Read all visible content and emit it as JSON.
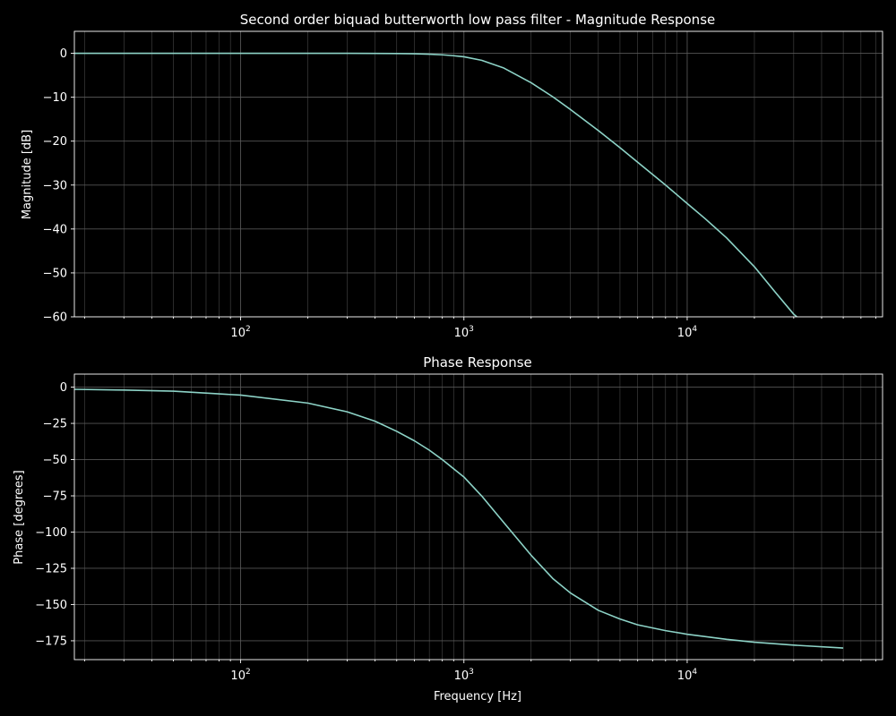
{
  "style": {
    "background": "#000000",
    "line_color": "#8dd3c7",
    "grid_color": "#5a5a5a",
    "text_color": "#ffffff"
  },
  "chart_data": [
    {
      "type": "line",
      "id": "magnitude",
      "title": "Second order biquad butterworth low pass filter - Magnitude Response",
      "xlabel": "",
      "ylabel": "Magnitude [dB]",
      "xscale": "log",
      "xlim": [
        18,
        75000
      ],
      "ylim": [
        -60,
        5
      ],
      "grid": true,
      "yticks": [
        {
          "value": 0,
          "label": "0"
        },
        {
          "value": -10,
          "label": "−10"
        },
        {
          "value": -20,
          "label": "−20"
        },
        {
          "value": -30,
          "label": "−30"
        },
        {
          "value": -40,
          "label": "−40"
        },
        {
          "value": -50,
          "label": "−50"
        },
        {
          "value": -60,
          "label": "−60"
        }
      ],
      "xticks": [
        {
          "value": 100,
          "base": "10",
          "exp": "2"
        },
        {
          "value": 1000,
          "base": "10",
          "exp": "3"
        },
        {
          "value": 10000,
          "base": "10",
          "exp": "4"
        }
      ],
      "series": [
        {
          "x": [
            18,
            50,
            100,
            200,
            300,
            400,
            500,
            600,
            700,
            800,
            900,
            1000,
            1200,
            1500,
            2000,
            2500,
            3000,
            4000,
            5000,
            6000,
            8000,
            10000,
            12000,
            15000,
            20000,
            25000,
            30000,
            31000
          ],
          "y": [
            0,
            0,
            0,
            0,
            -0.01,
            -0.02,
            -0.05,
            -0.1,
            -0.2,
            -0.35,
            -0.55,
            -0.8,
            -1.6,
            -3.3,
            -6.7,
            -9.9,
            -12.8,
            -17.6,
            -21.5,
            -24.8,
            -30.0,
            -34.2,
            -37.6,
            -42.0,
            -48.6,
            -54.6,
            -59.4,
            -60
          ]
        }
      ]
    },
    {
      "type": "line",
      "id": "phase",
      "title": "Phase Response",
      "xlabel": "Frequency [Hz]",
      "ylabel": "Phase [degrees]",
      "xscale": "log",
      "xlim": [
        18,
        75000
      ],
      "ylim": [
        -188,
        9
      ],
      "grid": true,
      "yticks": [
        {
          "value": 0,
          "label": "0"
        },
        {
          "value": -25,
          "label": "−25"
        },
        {
          "value": -50,
          "label": "−50"
        },
        {
          "value": -75,
          "label": "−75"
        },
        {
          "value": -100,
          "label": "−100"
        },
        {
          "value": -125,
          "label": "−125"
        },
        {
          "value": -150,
          "label": "−150"
        },
        {
          "value": -175,
          "label": "−175"
        }
      ],
      "xticks": [
        {
          "value": 100,
          "base": "10",
          "exp": "2"
        },
        {
          "value": 1000,
          "base": "10",
          "exp": "3"
        },
        {
          "value": 10000,
          "base": "10",
          "exp": "4"
        }
      ],
      "series": [
        {
          "x": [
            18,
            30,
            50,
            100,
            200,
            300,
            400,
            500,
            600,
            700,
            800,
            1000,
            1200,
            1500,
            2000,
            2500,
            3000,
            4000,
            5000,
            6000,
            8000,
            10000,
            15000,
            20000,
            30000,
            50000
          ],
          "y": [
            -1.5,
            -2,
            -2.8,
            -5.5,
            -11,
            -17,
            -23.5,
            -30.5,
            -37,
            -43.5,
            -50,
            -62,
            -75,
            -93,
            -116,
            -132,
            -142,
            -154,
            -160,
            -164,
            -168,
            -170.5,
            -174,
            -176,
            -178,
            -180
          ]
        }
      ]
    }
  ]
}
